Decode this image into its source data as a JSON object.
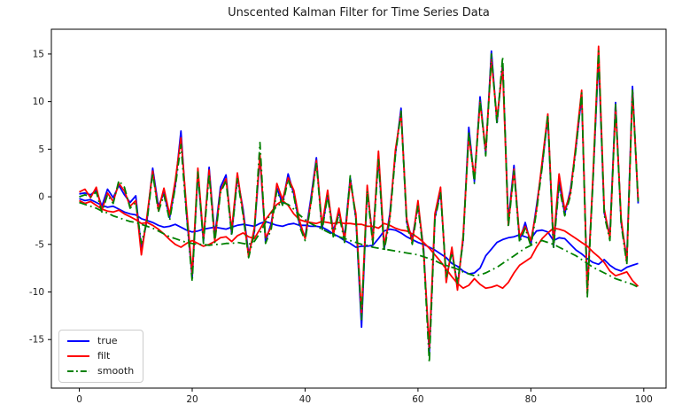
{
  "figure": {
    "title": "Unscented Kalman Filter for Time Series Data"
  },
  "chart_data": {
    "type": "line",
    "title": "Unscented Kalman Filter for Time Series Data",
    "xlabel": "",
    "ylabel": "",
    "x_start": 0,
    "x_step": 1,
    "n_points": 100,
    "xlim": [
      -4.95,
      103.95
    ],
    "ylim": [
      -20.1,
      17.6
    ],
    "x_ticks": [
      0,
      20,
      40,
      60,
      80,
      100
    ],
    "y_ticks": [
      -15,
      -10,
      -5,
      0,
      5,
      10,
      15
    ],
    "grid": false,
    "legend_position": "lower left",
    "legend": [
      {
        "label": "true",
        "color": "#0000ff",
        "style": "solid"
      },
      {
        "label": "filt",
        "color": "#ff0000",
        "style": "solid"
      },
      {
        "label": "smooth",
        "color": "#008000",
        "style": "dashdot"
      }
    ],
    "series": [
      {
        "name": "true",
        "component": "state-1",
        "color": "#0000ff",
        "style": "solid",
        "values": [
          0.3,
          0.4,
          0.2,
          0.7,
          -1.0,
          0.8,
          -0.1,
          1.2,
          0.2,
          -0.6,
          0.1,
          -5.6,
          -2.4,
          3.0,
          -1.0,
          0.4,
          -2.2,
          1.2,
          6.9,
          -1.8,
          -8.5,
          2.5,
          -4.7,
          3.1,
          -4.2,
          1.0,
          2.3,
          -3.9,
          2.1,
          -1.3,
          -6.0,
          -3.7,
          4.2,
          -4.7,
          -2.8,
          0.9,
          -0.7,
          2.4,
          0.3,
          -2.9,
          -4.2,
          -0.3,
          4.1,
          -3.4,
          0.3,
          -3.6,
          -1.6,
          -4.2,
          2.0,
          -2.2,
          -13.7,
          0.8,
          -4.4,
          4.3,
          -5.5,
          -1.8,
          4.5,
          9.3,
          -2.7,
          -4.4,
          -0.8,
          -5.5,
          -16.5,
          -2.2,
          0.6,
          -8.6,
          -5.7,
          -9.3,
          -4.5,
          7.3,
          1.6,
          10.5,
          4.5,
          15.3,
          7.8,
          14.0,
          -2.6,
          3.3,
          -4.6,
          -2.7,
          -5.0,
          -1.0,
          3.3,
          8.4,
          -5.3,
          1.6,
          -1.8,
          0.7,
          5.3,
          10.6,
          -9.7,
          1.8,
          14.7,
          -1.7,
          -4.0,
          9.9,
          -2.7,
          -6.5,
          11.6,
          -0.7
        ]
      },
      {
        "name": "true",
        "component": "state-2",
        "color": "#0000ff",
        "style": "solid",
        "values": [
          -0.2,
          -0.4,
          -0.3,
          -0.6,
          -0.9,
          -1.1,
          -1.0,
          -1.3,
          -1.6,
          -1.8,
          -1.9,
          -2.3,
          -2.5,
          -2.7,
          -3.0,
          -3.2,
          -3.1,
          -2.9,
          -3.2,
          -3.5,
          -3.7,
          -3.6,
          -3.4,
          -3.3,
          -3.2,
          -3.3,
          -3.4,
          -3.2,
          -3.0,
          -2.9,
          -3.0,
          -3.1,
          -2.8,
          -2.6,
          -2.8,
          -3.0,
          -3.1,
          -2.9,
          -2.8,
          -3.0,
          -3.0,
          -3.1,
          -3.1,
          -3.2,
          -3.5,
          -3.9,
          -4.2,
          -4.6,
          -4.9,
          -5.3,
          -5.2,
          -5.2,
          -5.1,
          -4.4,
          -3.6,
          -3.4,
          -3.5,
          -3.8,
          -4.2,
          -4.5,
          -4.8,
          -5.0,
          -5.3,
          -5.6,
          -6.0,
          -6.4,
          -7.0,
          -7.3,
          -7.8,
          -8.1,
          -8.0,
          -7.5,
          -6.2,
          -5.5,
          -4.8,
          -4.5,
          -4.3,
          -4.2,
          -4.0,
          -4.2,
          -4.4,
          -3.6,
          -3.5,
          -3.7,
          -4.6,
          -4.3,
          -4.4,
          -5.0,
          -5.6,
          -6.0,
          -6.5,
          -6.9,
          -7.1,
          -6.6,
          -7.2,
          -7.6,
          -7.8,
          -7.4,
          -7.2,
          -7.0
        ]
      },
      {
        "name": "filt",
        "component": "state-1",
        "color": "#ff0000",
        "style": "solid",
        "values": [
          0.5,
          0.8,
          -0.1,
          1.0,
          -1.4,
          0.4,
          -0.5,
          1.4,
          0.6,
          -1.0,
          -0.4,
          -6.1,
          -2.0,
          2.7,
          -1.4,
          0.9,
          -1.9,
          1.7,
          6.2,
          -1.2,
          -8.1,
          3.0,
          -4.4,
          2.8,
          -4.6,
          0.6,
          1.9,
          -3.5,
          2.5,
          -1.7,
          -6.3,
          -3.3,
          4.4,
          -4.3,
          -3.2,
          1.4,
          -0.3,
          2.0,
          0.7,
          -2.5,
          -4.4,
          -0.7,
          3.8,
          -3.0,
          0.7,
          -4.0,
          -1.2,
          -4.6,
          1.6,
          -1.8,
          -12.4,
          1.2,
          -4.8,
          4.8,
          -5.1,
          -2.2,
          4.9,
          8.8,
          -2.3,
          -4.8,
          -0.4,
          -5.8,
          -15.9,
          -1.8,
          1.0,
          -9.0,
          -5.3,
          -9.8,
          -4.1,
          6.4,
          2.0,
          9.9,
          4.9,
          14.4,
          8.2,
          13.6,
          -3.0,
          2.9,
          -4.2,
          -3.1,
          -4.6,
          -1.4,
          3.7,
          8.7,
          -4.9,
          2.4,
          -1.4,
          0.3,
          5.7,
          11.2,
          -10.2,
          2.2,
          15.8,
          -1.3,
          -4.4,
          9.4,
          -2.3,
          -6.9,
          11.1,
          -0.3
        ]
      },
      {
        "name": "filt",
        "component": "state-2",
        "color": "#ff0000",
        "style": "solid",
        "values": [
          -0.4,
          -0.7,
          -0.5,
          -0.9,
          -1.3,
          -1.5,
          -1.6,
          -1.4,
          -1.8,
          -2.1,
          -2.4,
          -2.8,
          -2.7,
          -3.0,
          -3.4,
          -3.9,
          -4.5,
          -5.0,
          -5.3,
          -4.9,
          -4.6,
          -4.9,
          -5.2,
          -5.0,
          -4.7,
          -4.3,
          -4.2,
          -4.7,
          -4.1,
          -3.8,
          -4.2,
          -4.4,
          -3.4,
          -2.4,
          -1.6,
          -0.8,
          -0.4,
          -0.9,
          -1.8,
          -2.4,
          -2.6,
          -2.7,
          -2.8,
          -2.6,
          -2.7,
          -2.8,
          -2.7,
          -2.8,
          -2.8,
          -2.9,
          -2.9,
          -3.1,
          -3.1,
          -3.3,
          -2.8,
          -3.0,
          -3.3,
          -3.5,
          -3.6,
          -3.9,
          -4.3,
          -4.8,
          -5.4,
          -6.1,
          -6.8,
          -7.6,
          -8.4,
          -9.1,
          -9.6,
          -9.3,
          -8.6,
          -9.2,
          -9.6,
          -9.5,
          -9.3,
          -9.6,
          -9.0,
          -8.0,
          -7.2,
          -6.8,
          -6.4,
          -5.3,
          -4.4,
          -3.8,
          -3.3,
          -3.4,
          -3.6,
          -4.0,
          -4.4,
          -4.8,
          -5.2,
          -5.8,
          -6.3,
          -6.9,
          -7.8,
          -8.3,
          -8.1,
          -7.9,
          -8.8,
          -9.4
        ]
      },
      {
        "name": "smooth",
        "component": "state-1",
        "color": "#008000",
        "style": "dashdot",
        "values": [
          0.0,
          0.2,
          0.0,
          0.5,
          -1.6,
          0.2,
          -0.7,
          1.7,
          1.0,
          -1.2,
          -0.6,
          -4.9,
          -2.6,
          2.5,
          -1.6,
          0.2,
          -2.5,
          1.0,
          5.5,
          -2.0,
          -8.9,
          2.6,
          -4.9,
          2.4,
          -4.8,
          0.4,
          1.7,
          -4.1,
          1.9,
          -1.9,
          -6.4,
          -3.9,
          5.7,
          -4.9,
          -3.4,
          0.7,
          -0.9,
          1.8,
          0.1,
          -3.1,
          -4.6,
          -0.9,
          3.6,
          -3.6,
          0.1,
          -4.2,
          -1.8,
          -4.8,
          2.2,
          -2.4,
          -12.9,
          0.6,
          -5.0,
          3.9,
          -5.7,
          -2.4,
          4.3,
          9.0,
          -2.9,
          -5.0,
          -1.0,
          -6.0,
          -17.4,
          -2.4,
          0.4,
          -8.4,
          -5.9,
          -9.1,
          -4.7,
          6.9,
          1.4,
          10.2,
          4.3,
          15.0,
          7.6,
          14.7,
          -3.2,
          2.7,
          -4.8,
          -3.3,
          -5.2,
          -1.6,
          3.1,
          8.6,
          -5.5,
          1.2,
          -2.0,
          0.1,
          5.1,
          10.9,
          -10.5,
          1.6,
          15.3,
          -1.9,
          -4.6,
          9.7,
          -2.9,
          -7.1,
          11.3,
          -0.5
        ]
      },
      {
        "name": "smooth",
        "component": "state-2",
        "color": "#008000",
        "style": "dashdot",
        "values": [
          -0.6,
          -0.8,
          -1.0,
          -1.2,
          -1.5,
          -1.7,
          -2.0,
          -2.2,
          -2.4,
          -2.6,
          -2.7,
          -2.9,
          -3.1,
          -3.3,
          -3.6,
          -3.9,
          -4.2,
          -4.4,
          -4.6,
          -4.8,
          -4.9,
          -5.0,
          -5.0,
          -5.1,
          -5.0,
          -5.0,
          -4.9,
          -4.9,
          -4.8,
          -4.9,
          -5.0,
          -4.7,
          -3.8,
          -2.7,
          -1.7,
          -1.0,
          -0.6,
          -0.8,
          -1.3,
          -1.9,
          -2.4,
          -2.8,
          -3.1,
          -3.4,
          -3.7,
          -4.0,
          -4.2,
          -4.4,
          -4.6,
          -4.8,
          -5.0,
          -5.1,
          -5.3,
          -5.4,
          -5.5,
          -5.6,
          -5.7,
          -5.8,
          -5.9,
          -6.0,
          -6.1,
          -6.3,
          -6.5,
          -6.7,
          -7.0,
          -7.2,
          -7.4,
          -7.6,
          -7.9,
          -8.1,
          -8.3,
          -8.2,
          -8.0,
          -7.7,
          -7.4,
          -7.0,
          -6.6,
          -6.2,
          -5.8,
          -5.4,
          -5.1,
          -4.8,
          -4.6,
          -4.8,
          -5.0,
          -5.3,
          -5.6,
          -5.9,
          -6.2,
          -6.6,
          -7.0,
          -7.4,
          -7.7,
          -8.0,
          -8.3,
          -8.6,
          -8.8,
          -9.0,
          -9.2,
          -9.5
        ]
      }
    ]
  }
}
